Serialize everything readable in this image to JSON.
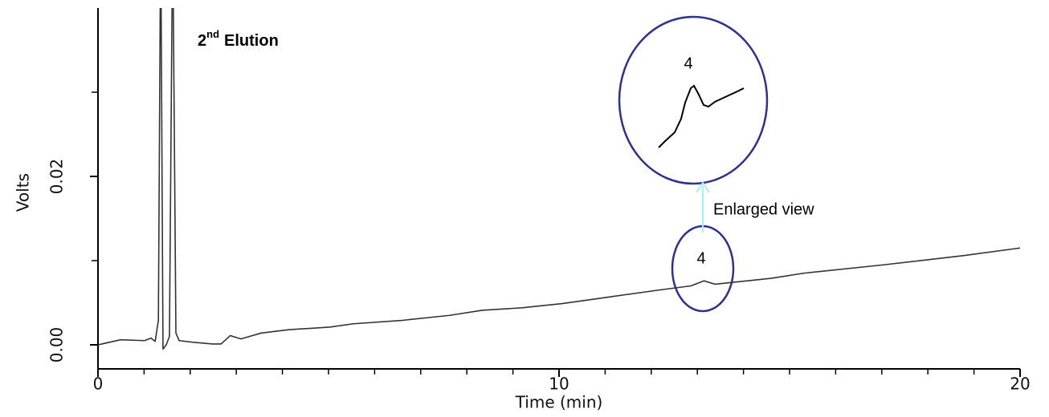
{
  "chart_data": {
    "type": "line",
    "x_label": "Time (min)",
    "y_label": "Volts",
    "xlim": [
      0,
      20
    ],
    "ylim": [
      0,
      0.04
    ],
    "xticks": [
      0,
      10,
      20
    ],
    "xminorticks": [
      1,
      2,
      3,
      4,
      5,
      6,
      7,
      8,
      9,
      11,
      12,
      13,
      14,
      15,
      16,
      17,
      18,
      19
    ],
    "yticks": [
      {
        "value": 0,
        "label": "0.00"
      },
      {
        "value": 0.02,
        "label": "0.02"
      }
    ],
    "yminorticks": [
      0.01,
      0.03
    ],
    "series": [
      {
        "color": "#333333",
        "x": [
          0,
          0.49,
          1.01,
          1.15,
          1.24,
          1.31,
          1.36,
          1.41,
          1.48,
          1.55,
          1.62,
          1.69,
          1.76,
          2.06,
          2.49,
          2.67,
          2.87,
          3.1,
          3.54,
          4.15,
          5.02,
          5.54,
          6.59,
          7.63,
          8.33,
          9.2,
          10.07,
          11.11,
          12.16,
          12.86,
          13.14,
          13.38,
          14.6,
          15.3,
          17.04,
          18.78,
          20
        ],
        "values": [
          0,
          0.0006,
          0.0005,
          0.0008,
          0.0004,
          0.0029,
          0.05,
          -0.0005,
          0,
          0.001,
          0.05,
          0.0014,
          0.0005,
          0.0003,
          0.0001,
          0.0001,
          0.0011,
          0.0007,
          0.0014,
          0.0018,
          0.0021,
          0.0025,
          0.0029,
          0.0035,
          0.0041,
          0.0044,
          0.0049,
          0.0057,
          0.0065,
          0.007,
          0.0076,
          0.0072,
          0.0079,
          0.0085,
          0.0095,
          0.0106,
          0.0115
        ]
      }
    ],
    "annotations": {
      "elution": {
        "base": "2",
        "sup": "nd",
        "text": "Elution"
      },
      "peak_label": "4",
      "inset_label": "4",
      "enlarged": "Enlarged view"
    }
  }
}
